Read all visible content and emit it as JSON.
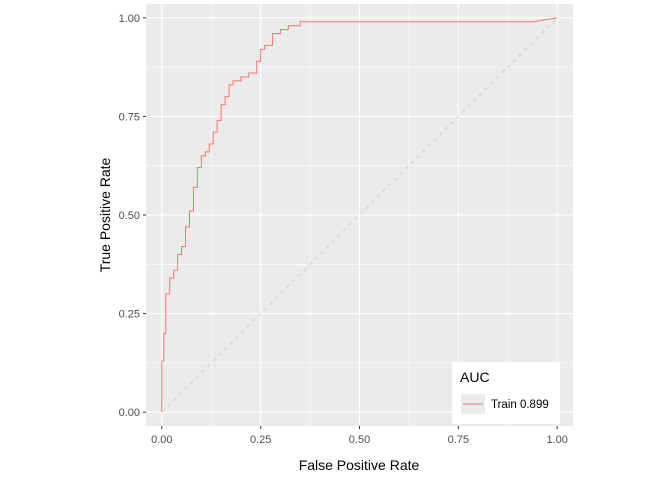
{
  "chart_data": {
    "type": "line",
    "title": "",
    "xlabel": "False Positive Rate",
    "ylabel": "True Positive Rate",
    "xlim": [
      -0.04,
      1.04
    ],
    "ylim": [
      -0.035,
      1.035
    ],
    "x_ticks": [
      0,
      0.25,
      0.5,
      0.75,
      1
    ],
    "x_tick_labels": [
      "0.00",
      "0.25",
      "0.50",
      "0.75",
      "1.00"
    ],
    "y_ticks": [
      0,
      0.25,
      0.5,
      0.75,
      1
    ],
    "y_tick_labels": [
      "0.00",
      "0.25",
      "0.50",
      "0.75",
      "1.00"
    ],
    "grid": true,
    "reference_line": {
      "x": [
        0,
        1
      ],
      "y": [
        0,
        1
      ],
      "style": "dashed",
      "color": "#c8c8c8"
    },
    "legend": {
      "title": "AUC",
      "placement": "bottom-right"
    },
    "series": [
      {
        "name": "Train 0.899",
        "color": "#f8766d",
        "x": [
          0,
          0,
          0.005,
          0.005,
          0.01,
          0.01,
          0.02,
          0.02,
          0.03,
          0.03,
          0.04,
          0.04,
          0.05,
          0.05,
          0.06,
          0.06,
          0.07,
          0.07,
          0.08,
          0.08,
          0.09,
          0.09,
          0.1,
          0.1,
          0.11,
          0.11,
          0.12,
          0.12,
          0.13,
          0.13,
          0.14,
          0.14,
          0.15,
          0.15,
          0.16,
          0.16,
          0.17,
          0.17,
          0.18,
          0.18,
          0.19,
          0.19,
          0.2,
          0.2,
          0.22,
          0.22,
          0.24,
          0.24,
          0.25,
          0.25,
          0.26,
          0.26,
          0.28,
          0.28,
          0.3,
          0.3,
          0.32,
          0.32,
          0.35,
          0.35,
          0.94,
          1.0
        ],
        "y": [
          0,
          0.13,
          0.13,
          0.2,
          0.2,
          0.3,
          0.3,
          0.34,
          0.34,
          0.36,
          0.36,
          0.4,
          0.4,
          0.42,
          0.42,
          0.47,
          0.47,
          0.51,
          0.51,
          0.57,
          0.57,
          0.62,
          0.62,
          0.65,
          0.65,
          0.66,
          0.66,
          0.68,
          0.68,
          0.71,
          0.71,
          0.74,
          0.74,
          0.78,
          0.78,
          0.8,
          0.8,
          0.83,
          0.83,
          0.84,
          0.84,
          0.84,
          0.84,
          0.85,
          0.85,
          0.86,
          0.86,
          0.89,
          0.89,
          0.92,
          0.92,
          0.93,
          0.93,
          0.96,
          0.96,
          0.97,
          0.97,
          0.98,
          0.98,
          0.99,
          0.99,
          1.0
        ]
      }
    ]
  }
}
